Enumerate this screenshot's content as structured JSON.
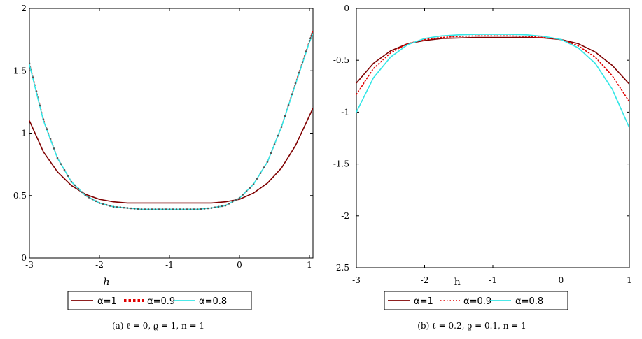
{
  "chart_data": [
    {
      "type": "line",
      "caption": "(a) ℓ = 0, ϱ = 1, n = 1",
      "xlabel": "h",
      "ylabel": "",
      "xlim": [
        -3,
        1.05
      ],
      "ylim": [
        0,
        2
      ],
      "xticks": [
        -3,
        -2,
        -1,
        0,
        1
      ],
      "yticks": [
        0,
        0.5,
        1,
        1.5,
        2
      ],
      "xtick_labels": [
        "-3",
        "-2",
        "-1",
        "0",
        "1"
      ],
      "ytick_labels": [
        "0",
        "0.5",
        "1",
        "1.5",
        "2"
      ],
      "grid": false,
      "legend_position": "bottom",
      "series": [
        {
          "name": "α=1",
          "color": "#7f0000",
          "style": "solid",
          "x": [
            -3.0,
            -2.8,
            -2.6,
            -2.4,
            -2.2,
            -2.0,
            -1.8,
            -1.6,
            -1.4,
            -1.2,
            -1.0,
            -0.8,
            -0.6,
            -0.4,
            -0.2,
            0.0,
            0.2,
            0.4,
            0.6,
            0.8,
            1.0,
            1.05
          ],
          "y": [
            1.1,
            0.85,
            0.69,
            0.58,
            0.51,
            0.47,
            0.45,
            0.44,
            0.44,
            0.44,
            0.44,
            0.44,
            0.44,
            0.44,
            0.45,
            0.47,
            0.52,
            0.6,
            0.72,
            0.9,
            1.14,
            1.2
          ]
        },
        {
          "name": "α=0.9",
          "color": "#e00000",
          "style": "dotted",
          "x": [
            -3.0,
            -2.8,
            -2.6,
            -2.4,
            -2.2,
            -2.0,
            -1.8,
            -1.6,
            -1.4,
            -1.2,
            -1.0,
            -0.8,
            -0.6,
            -0.4,
            -0.2,
            0.0,
            0.2,
            0.4,
            0.6,
            0.8,
            1.0,
            1.05
          ],
          "y": [
            1.56,
            1.11,
            0.8,
            0.61,
            0.5,
            0.44,
            0.41,
            0.4,
            0.39,
            0.39,
            0.39,
            0.39,
            0.39,
            0.4,
            0.42,
            0.48,
            0.59,
            0.77,
            1.05,
            1.4,
            1.74,
            1.82
          ]
        },
        {
          "name": "α=0.8",
          "color": "#33e6e6",
          "style": "solid",
          "x": [
            -3.0,
            -2.8,
            -2.6,
            -2.4,
            -2.2,
            -2.0,
            -1.8,
            -1.6,
            -1.4,
            -1.2,
            -1.0,
            -0.8,
            -0.6,
            -0.4,
            -0.2,
            0.0,
            0.2,
            0.4,
            0.6,
            0.8,
            1.0,
            1.05
          ],
          "y": [
            1.55,
            1.1,
            0.8,
            0.61,
            0.5,
            0.44,
            0.41,
            0.4,
            0.39,
            0.39,
            0.39,
            0.39,
            0.39,
            0.4,
            0.42,
            0.48,
            0.59,
            0.77,
            1.05,
            1.39,
            1.73,
            1.8
          ]
        }
      ]
    },
    {
      "type": "line",
      "caption": "(b) ℓ = 0.2, ϱ = 0.1, n = 1",
      "xlabel": "h",
      "ylabel": "",
      "xlim": [
        -3,
        1
      ],
      "ylim": [
        -2.5,
        0
      ],
      "xticks": [
        -3,
        -2,
        -1,
        0,
        1
      ],
      "yticks": [
        0,
        -0.5,
        -1,
        -1.5,
        -2,
        -2.5
      ],
      "xtick_labels": [
        "-3",
        "-2",
        "-1",
        "0",
        "1"
      ],
      "ytick_labels": [
        "0",
        "-0.5",
        "-1",
        "-1.5",
        "-2",
        "-2.5"
      ],
      "grid": false,
      "legend_position": "bottom",
      "series": [
        {
          "name": "α=1",
          "color": "#7f0000",
          "style": "solid",
          "x": [
            -3.0,
            -2.75,
            -2.5,
            -2.25,
            -2.0,
            -1.75,
            -1.5,
            -1.25,
            -1.0,
            -0.75,
            -0.5,
            -0.25,
            0.0,
            0.25,
            0.5,
            0.75,
            1.0
          ],
          "y": [
            -0.72,
            -0.53,
            -0.41,
            -0.34,
            -0.31,
            -0.29,
            -0.285,
            -0.28,
            -0.28,
            -0.28,
            -0.28,
            -0.285,
            -0.3,
            -0.34,
            -0.42,
            -0.55,
            -0.73
          ]
        },
        {
          "name": "α=0.9",
          "color": "#e00000",
          "style": "dotted",
          "x": [
            -3.0,
            -2.75,
            -2.5,
            -2.25,
            -2.0,
            -1.75,
            -1.5,
            -1.25,
            -1.0,
            -0.75,
            -0.5,
            -0.25,
            0.0,
            0.25,
            0.5,
            0.75,
            1.0
          ],
          "y": [
            -0.83,
            -0.58,
            -0.43,
            -0.34,
            -0.3,
            -0.28,
            -0.27,
            -0.265,
            -0.265,
            -0.265,
            -0.27,
            -0.28,
            -0.3,
            -0.36,
            -0.47,
            -0.65,
            -0.9
          ]
        },
        {
          "name": "α=0.8",
          "color": "#33e6e6",
          "style": "solid",
          "x": [
            -3.0,
            -2.75,
            -2.5,
            -2.25,
            -2.0,
            -1.75,
            -1.5,
            -1.25,
            -1.0,
            -0.75,
            -0.5,
            -0.25,
            0.0,
            0.25,
            0.5,
            0.75,
            1.0
          ],
          "y": [
            -1.0,
            -0.67,
            -0.47,
            -0.35,
            -0.29,
            -0.265,
            -0.255,
            -0.25,
            -0.25,
            -0.25,
            -0.255,
            -0.27,
            -0.3,
            -0.38,
            -0.53,
            -0.78,
            -1.15
          ]
        }
      ]
    }
  ]
}
